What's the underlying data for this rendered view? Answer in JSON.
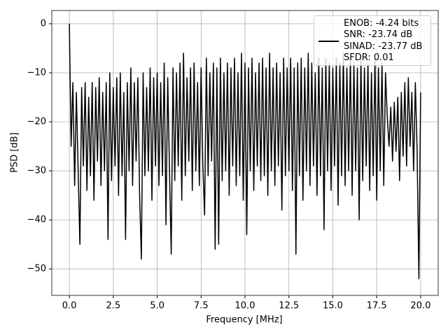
{
  "chart_data": {
    "type": "line",
    "xlabel": "Frequency [MHz]",
    "ylabel": "PSD [dB]",
    "xlim": [
      -1.0,
      21.0
    ],
    "ylim": [
      -55.4,
      2.7
    ],
    "xticks": [
      {
        "value": 0,
        "label": "0.0"
      },
      2.5,
      {
        "value": 5,
        "label": "5.0"
      },
      7.5,
      {
        "value": 10,
        "label": "10.0"
      },
      12.5,
      {
        "value": 15,
        "label": "15.0"
      },
      17.5,
      {
        "value": 20,
        "label": "20.0"
      }
    ],
    "yticks": [
      0,
      {
        "value": -10,
        "label": "−10"
      },
      {
        "value": -20,
        "label": "−20"
      },
      {
        "value": -30,
        "label": "−30"
      },
      {
        "value": -40,
        "label": "−40"
      },
      {
        "value": -50,
        "label": "−50"
      }
    ],
    "grid": true,
    "legend": "upper right",
    "x": [
      0,
      0.1,
      0.2,
      0.3,
      0.4,
      0.5,
      0.6,
      0.7,
      0.8,
      0.9,
      1.0,
      1.1,
      1.2,
      1.3,
      1.4,
      1.5,
      1.6,
      1.7,
      1.8,
      1.9,
      2.0,
      2.1,
      2.2,
      2.3,
      2.4,
      2.5,
      2.6,
      2.7,
      2.8,
      2.9,
      3.0,
      3.1,
      3.2,
      3.3,
      3.4,
      3.5,
      3.6,
      3.7,
      3.8,
      3.9,
      4.0,
      4.1,
      4.2,
      4.3,
      4.4,
      4.5,
      4.6,
      4.7,
      4.8,
      4.9,
      5.0,
      5.1,
      5.2,
      5.3,
      5.4,
      5.5,
      5.6,
      5.7,
      5.8,
      5.9,
      6.0,
      6.1,
      6.2,
      6.3,
      6.4,
      6.5,
      6.6,
      6.7,
      6.8,
      6.9,
      7.0,
      7.1,
      7.2,
      7.3,
      7.4,
      7.5,
      7.6,
      7.7,
      7.8,
      7.9,
      8.0,
      8.1,
      8.2,
      8.3,
      8.4,
      8.5,
      8.6,
      8.7,
      8.8,
      8.9,
      9.0,
      9.1,
      9.2,
      9.3,
      9.4,
      9.5,
      9.6,
      9.7,
      9.8,
      9.9,
      10.0,
      10.1,
      10.2,
      10.3,
      10.4,
      10.5,
      10.6,
      10.7,
      10.8,
      10.9,
      11.0,
      11.1,
      11.2,
      11.3,
      11.4,
      11.5,
      11.6,
      11.7,
      11.8,
      11.9,
      12.0,
      12.1,
      12.2,
      12.3,
      12.4,
      12.5,
      12.6,
      12.7,
      12.8,
      12.9,
      13.0,
      13.1,
      13.2,
      13.3,
      13.4,
      13.5,
      13.6,
      13.7,
      13.8,
      13.9,
      14.0,
      14.1,
      14.2,
      14.3,
      14.4,
      14.5,
      14.6,
      14.7,
      14.8,
      14.9,
      15.0,
      15.1,
      15.2,
      15.3,
      15.4,
      15.5,
      15.6,
      15.7,
      15.8,
      15.9,
      16.0,
      16.1,
      16.2,
      16.3,
      16.4,
      16.5,
      16.6,
      16.7,
      16.8,
      16.9,
      17.0,
      17.1,
      17.2,
      17.3,
      17.4,
      17.5,
      17.6,
      17.7,
      17.8,
      17.9,
      18.0,
      18.1,
      18.2,
      18.3,
      18.4,
      18.5,
      18.6,
      18.7,
      18.8,
      18.9,
      19.0,
      19.1,
      19.2,
      19.3,
      19.4,
      19.5,
      19.6,
      19.7,
      19.8,
      19.9,
      20.0
    ],
    "series": [
      {
        "name": "ENOB: -4.24 bits\nSNR: -23.74 dB\nSINAD: -23.77 dB\nSFDR: 0.01",
        "color": "#000000",
        "values": [
          0,
          -25,
          -12,
          -33,
          -14,
          -30,
          -45,
          -13,
          -29,
          -12,
          -34,
          -15,
          -31,
          -12,
          -36,
          -13,
          -28,
          -11,
          -33,
          -14,
          -30,
          -12,
          -44,
          -10,
          -32,
          -13,
          -29,
          -11,
          -35,
          -10,
          -31,
          -14,
          -44,
          -12,
          -30,
          -9,
          -33,
          -12,
          -28,
          -11,
          -35,
          -48,
          -10,
          -31,
          -13,
          -30,
          -9,
          -36,
          -11,
          -29,
          -10,
          -33,
          -12,
          -31,
          -8,
          -41,
          -11,
          -30,
          -47,
          -9,
          -32,
          -10,
          -29,
          -8,
          -36,
          -6,
          -31,
          -11,
          -28,
          -9,
          -34,
          -8,
          -30,
          -12,
          -33,
          -9,
          -29,
          -39,
          -7,
          -31,
          -10,
          -28,
          -8,
          -46,
          -9,
          -45,
          -7,
          -32,
          -10,
          -30,
          -8,
          -35,
          -9,
          -29,
          -7,
          -33,
          -10,
          -31,
          -6,
          -36,
          -8,
          -43,
          -9,
          -30,
          -7,
          -34,
          -10,
          -29,
          -8,
          -32,
          -7,
          -31,
          -9,
          -35,
          -6,
          -30,
          -9,
          -33,
          -8,
          -29,
          -10,
          -38,
          -7,
          -31,
          -9,
          -30,
          -7,
          -34,
          -9,
          -47,
          -8,
          -31,
          -7,
          -36,
          -9,
          -30,
          -6,
          -33,
          -8,
          -29,
          -10,
          -35,
          -7,
          -31,
          -9,
          -42,
          -7,
          -30,
          -8,
          -34,
          -9,
          -29,
          -7,
          -37,
          -8,
          -31,
          -6,
          -33,
          -9,
          -30,
          -7,
          -35,
          -8,
          -30,
          -9,
          -40,
          -7,
          -32,
          -9,
          -29,
          -8,
          -34,
          -10,
          -31,
          -7,
          -36,
          -9,
          -30,
          -8,
          -33,
          -10,
          -19,
          -25,
          -17,
          -28,
          -16,
          -26,
          -15,
          -32,
          -14,
          -27,
          -12,
          -29,
          -11,
          -25,
          -14,
          -30,
          -12,
          -26,
          -52,
          -14
        ]
      }
    ]
  }
}
